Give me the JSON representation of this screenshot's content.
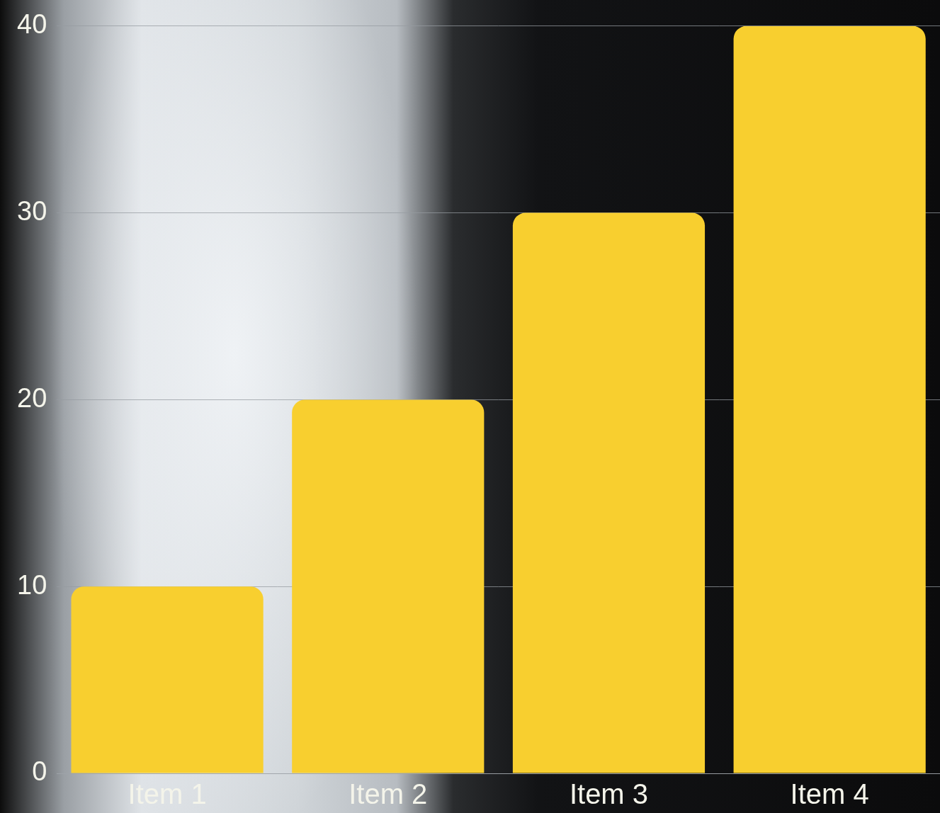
{
  "chart_data": {
    "type": "bar",
    "categories": [
      "Item 1",
      "Item 2",
      "Item 3",
      "Item 4"
    ],
    "values": [
      10,
      20,
      30,
      40
    ],
    "color": "#f8cf2f",
    "ylim": [
      0,
      40
    ],
    "yticks": [
      0,
      10,
      20,
      30,
      40
    ],
    "grid": true
  }
}
